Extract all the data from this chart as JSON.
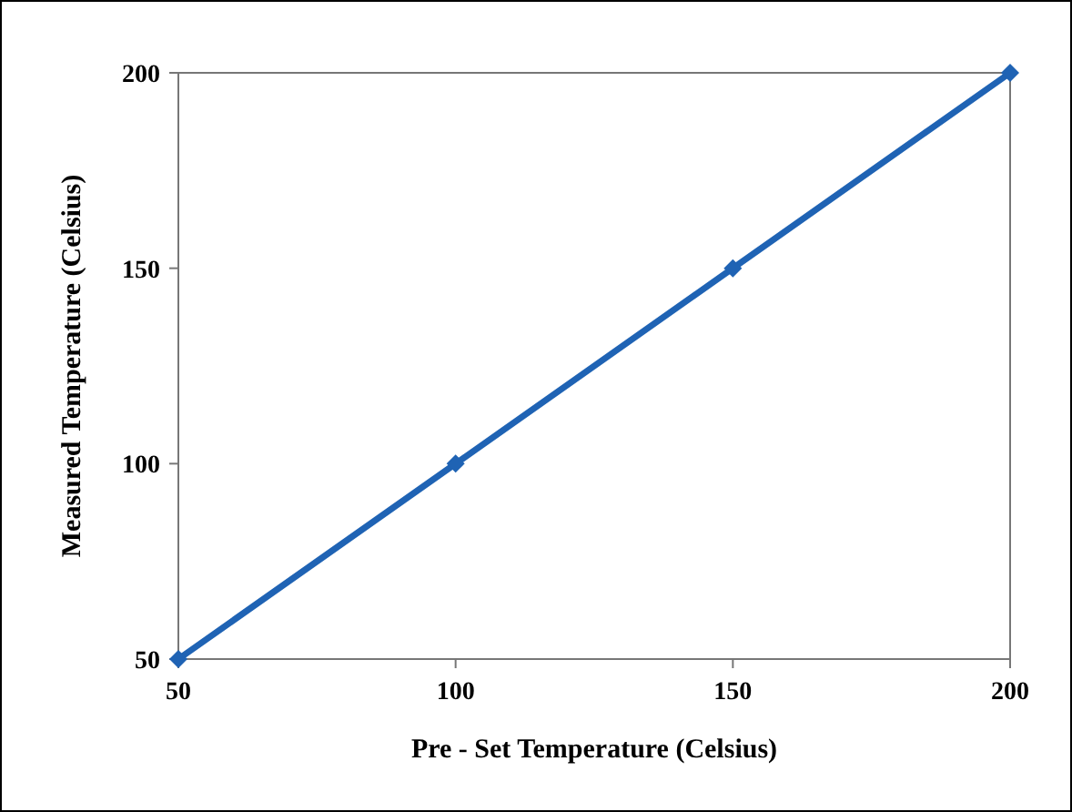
{
  "chart_data": {
    "type": "line",
    "xlabel": "Pre - Set Temperature (Celsius)",
    "ylabel": "Measured Temperature (Celsius)",
    "x": [
      50,
      100,
      150,
      200
    ],
    "series": [
      {
        "color": "#1f63b4",
        "values": [
          50,
          100,
          150,
          200
        ]
      }
    ],
    "xlim": [
      50,
      200
    ],
    "xticks": [
      50,
      100,
      150,
      200
    ],
    "ylim": [
      50,
      200
    ],
    "yticks": [
      50,
      100,
      150,
      200
    ],
    "marker": "diamond",
    "line_style": "solid",
    "grid": false
  }
}
